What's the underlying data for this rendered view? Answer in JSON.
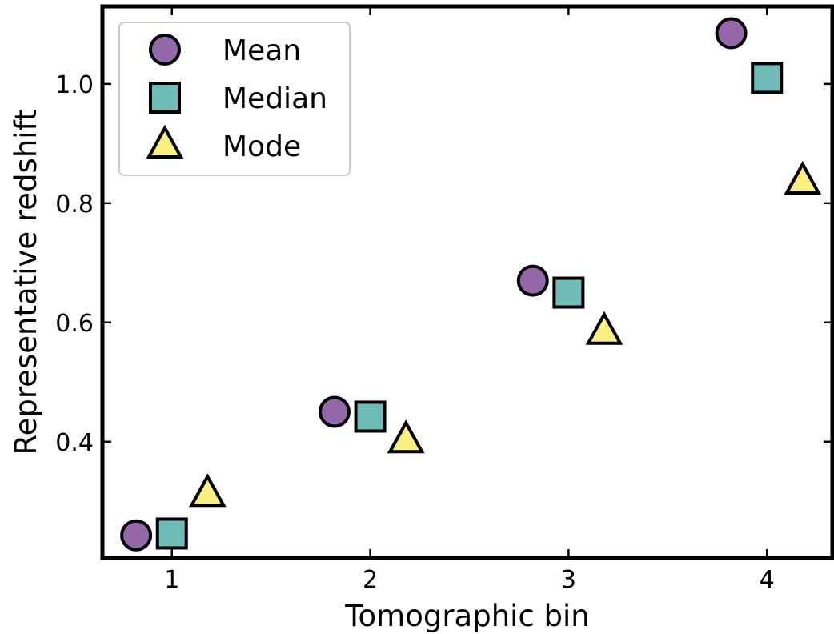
{
  "chart_data": {
    "type": "scatter",
    "title": "",
    "xlabel": "Tomographic bin",
    "ylabel": "Representative redshift",
    "xlim": [
      0.65,
      4.33
    ],
    "ylim": [
      0.205,
      1.13
    ],
    "x_ticks": [
      1,
      2,
      3,
      4
    ],
    "x_tick_labels": [
      "1",
      "2",
      "3",
      "4"
    ],
    "y_ticks": [
      0.4,
      0.6,
      0.8,
      1.0
    ],
    "y_tick_labels": [
      "0.4",
      "0.6",
      "0.8",
      "1.0"
    ],
    "grid": false,
    "legend_position": "top-left",
    "series": [
      {
        "name": "Mean",
        "marker": "circle",
        "color": "#9467a8",
        "x": [
          0.82,
          1.82,
          2.82,
          3.82
        ],
        "y": [
          0.243,
          0.45,
          0.67,
          1.085
        ]
      },
      {
        "name": "Median",
        "marker": "square",
        "color": "#6fbcb9",
        "x": [
          1.0,
          2.0,
          3.0,
          4.0
        ],
        "y": [
          0.246,
          0.442,
          0.65,
          1.01
        ]
      },
      {
        "name": "Mode",
        "marker": "triangle",
        "color": "#fbef80",
        "x": [
          1.18,
          2.18,
          3.18,
          4.18
        ],
        "y": [
          0.312,
          0.402,
          0.584,
          0.836
        ]
      }
    ]
  }
}
